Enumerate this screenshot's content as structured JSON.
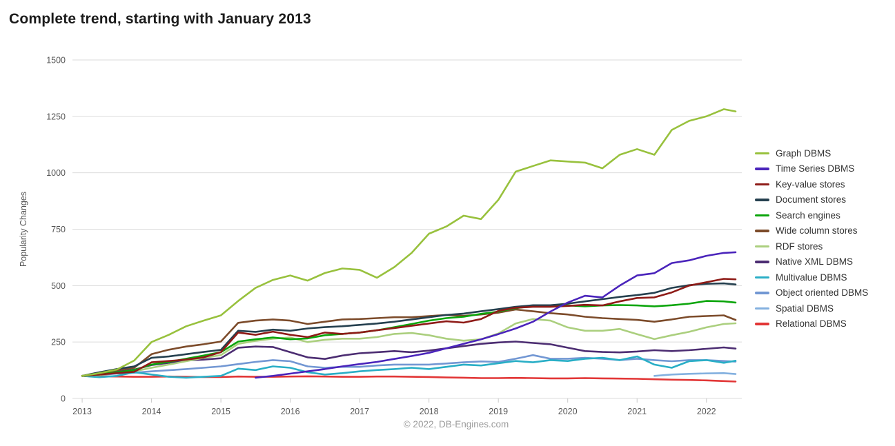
{
  "footer": {
    "credit": "© 2022, DB-Engines.com"
  },
  "colors": {
    "background": "#FFFFFF",
    "grid": "#DBDBDB",
    "axis": "#CFCFCF",
    "tick": "#C9C9C9",
    "tick_label": "#555555",
    "axis_title": "#555555",
    "title": "#1B1B1B",
    "legend_text": "#333333",
    "footer_text": "#9A9A9A"
  },
  "chart_data": {
    "type": "line",
    "title": "Complete trend, starting with January 2013",
    "xlabel": "",
    "ylabel": "Popularity Changes",
    "xlim": [
      2012.86,
      2022.51
    ],
    "ylim": [
      0,
      1500
    ],
    "xticks": [
      2013,
      2014,
      2015,
      2016,
      2017,
      2018,
      2019,
      2020,
      2021,
      2022
    ],
    "yticks": [
      0,
      250,
      500,
      750,
      1000,
      1250,
      1500
    ],
    "grid": true,
    "legend_position": "right",
    "x": [
      2013,
      2013.25,
      2013.5,
      2013.75,
      2014,
      2014.25,
      2014.5,
      2014.75,
      2015,
      2015.25,
      2015.5,
      2015.75,
      2016,
      2016.25,
      2016.5,
      2016.75,
      2017,
      2017.25,
      2017.5,
      2017.75,
      2018,
      2018.25,
      2018.5,
      2018.75,
      2019,
      2019.25,
      2019.5,
      2019.75,
      2020,
      2020.25,
      2020.5,
      2020.75,
      2021,
      2021.25,
      2021.5,
      2021.75,
      2022,
      2022.25,
      2022.42
    ],
    "series": [
      {
        "name": "Graph DBMS",
        "color": "#98C13D",
        "values": [
          100,
          112,
          128,
          168,
          250,
          282,
          320,
          345,
          368,
          432,
          490,
          525,
          545,
          522,
          556,
          576,
          570,
          535,
          582,
          645,
          730,
          762,
          810,
          795,
          880,
          1005,
          1030,
          1055,
          1050,
          1045,
          1020,
          1080,
          1105,
          1080,
          1190,
          1230,
          1250,
          1282,
          1272
        ]
      },
      {
        "name": "Time Series DBMS",
        "color": "#4A24BB",
        "values": [
          null,
          null,
          null,
          null,
          null,
          null,
          null,
          null,
          null,
          null,
          92,
          100,
          110,
          120,
          130,
          142,
          152,
          162,
          175,
          188,
          202,
          222,
          242,
          262,
          285,
          310,
          340,
          385,
          425,
          455,
          448,
          500,
          545,
          555,
          600,
          612,
          632,
          645,
          648
        ]
      },
      {
        "name": "Key-value stores",
        "color": "#8E1B17",
        "values": [
          100,
          106,
          112,
          118,
          160,
          166,
          172,
          182,
          205,
          292,
          282,
          296,
          282,
          272,
          292,
          286,
          292,
          302,
          312,
          322,
          332,
          342,
          336,
          352,
          388,
          402,
          406,
          406,
          410,
          415,
          412,
          430,
          445,
          448,
          470,
          500,
          515,
          530,
          528
        ]
      },
      {
        "name": "Document stores",
        "color": "#25404F",
        "values": [
          100,
          116,
          130,
          142,
          180,
          186,
          196,
          206,
          215,
          300,
          295,
          305,
          300,
          310,
          316,
          320,
          326,
          332,
          340,
          350,
          360,
          370,
          376,
          386,
          396,
          406,
          413,
          413,
          420,
          430,
          440,
          450,
          458,
          468,
          490,
          502,
          508,
          510,
          505
        ]
      },
      {
        "name": "Search engines",
        "color": "#0BA50B",
        "values": [
          100,
          106,
          116,
          126,
          150,
          162,
          176,
          190,
          205,
          252,
          262,
          270,
          262,
          266,
          280,
          286,
          292,
          302,
          316,
          330,
          345,
          356,
          362,
          375,
          385,
          400,
          410,
          413,
          412,
          408,
          412,
          414,
          412,
          408,
          413,
          420,
          432,
          430,
          425
        ]
      },
      {
        "name": "Wide column stores",
        "color": "#7C4B2A",
        "values": [
          100,
          110,
          125,
          136,
          196,
          216,
          230,
          240,
          252,
          335,
          345,
          350,
          345,
          330,
          340,
          350,
          352,
          356,
          360,
          360,
          365,
          370,
          366,
          372,
          380,
          394,
          386,
          378,
          372,
          362,
          356,
          352,
          348,
          340,
          350,
          362,
          365,
          368,
          348
        ]
      },
      {
        "name": "RDF stores",
        "color": "#ABCF7E",
        "values": [
          100,
          104,
          114,
          120,
          136,
          150,
          165,
          180,
          192,
          242,
          255,
          265,
          270,
          250,
          260,
          265,
          265,
          272,
          286,
          290,
          280,
          265,
          256,
          262,
          288,
          332,
          352,
          345,
          315,
          300,
          300,
          308,
          285,
          263,
          280,
          295,
          315,
          330,
          333
        ]
      },
      {
        "name": "Native XML DBMS",
        "color": "#4C2D72",
        "values": [
          100,
          108,
          118,
          128,
          148,
          158,
          168,
          172,
          178,
          225,
          230,
          228,
          205,
          182,
          175,
          190,
          200,
          205,
          210,
          205,
          212,
          222,
          232,
          242,
          248,
          252,
          246,
          240,
          225,
          210,
          206,
          204,
          208,
          214,
          210,
          214,
          220,
          226,
          221
        ]
      },
      {
        "name": "Multivalue DBMS",
        "color": "#29AEC6",
        "values": [
          100,
          94,
          100,
          116,
          106,
          96,
          92,
          96,
          100,
          132,
          126,
          142,
          136,
          116,
          106,
          112,
          120,
          126,
          130,
          136,
          130,
          140,
          150,
          146,
          156,
          166,
          160,
          170,
          166,
          176,
          180,
          170,
          186,
          150,
          136,
          165,
          170,
          158,
          167
        ]
      },
      {
        "name": "Object oriented DBMS",
        "color": "#7297D3",
        "values": [
          100,
          104,
          110,
          114,
          120,
          125,
          130,
          136,
          142,
          152,
          162,
          170,
          165,
          142,
          136,
          140,
          140,
          146,
          150,
          150,
          150,
          155,
          160,
          164,
          162,
          176,
          192,
          176,
          176,
          180,
          176,
          170,
          176,
          170,
          165,
          170,
          170,
          166,
          163
        ]
      },
      {
        "name": "Spatial DBMS",
        "color": "#83B0DF",
        "values": [
          null,
          null,
          null,
          null,
          null,
          null,
          null,
          null,
          null,
          null,
          null,
          null,
          null,
          null,
          null,
          null,
          null,
          null,
          null,
          null,
          null,
          null,
          null,
          null,
          null,
          null,
          null,
          null,
          null,
          null,
          null,
          null,
          null,
          100,
          106,
          109,
          111,
          112,
          108
        ]
      },
      {
        "name": "Relational DBMS",
        "color": "#E23636",
        "values": [
          100,
          98,
          97,
          96,
          96,
          97,
          96,
          95,
          95,
          97,
          96,
          96,
          97,
          98,
          97,
          96,
          96,
          97,
          97,
          96,
          95,
          93,
          92,
          90,
          90,
          91,
          90,
          89,
          89,
          90,
          89,
          88,
          87,
          85,
          83,
          82,
          80,
          77,
          75
        ]
      }
    ]
  }
}
